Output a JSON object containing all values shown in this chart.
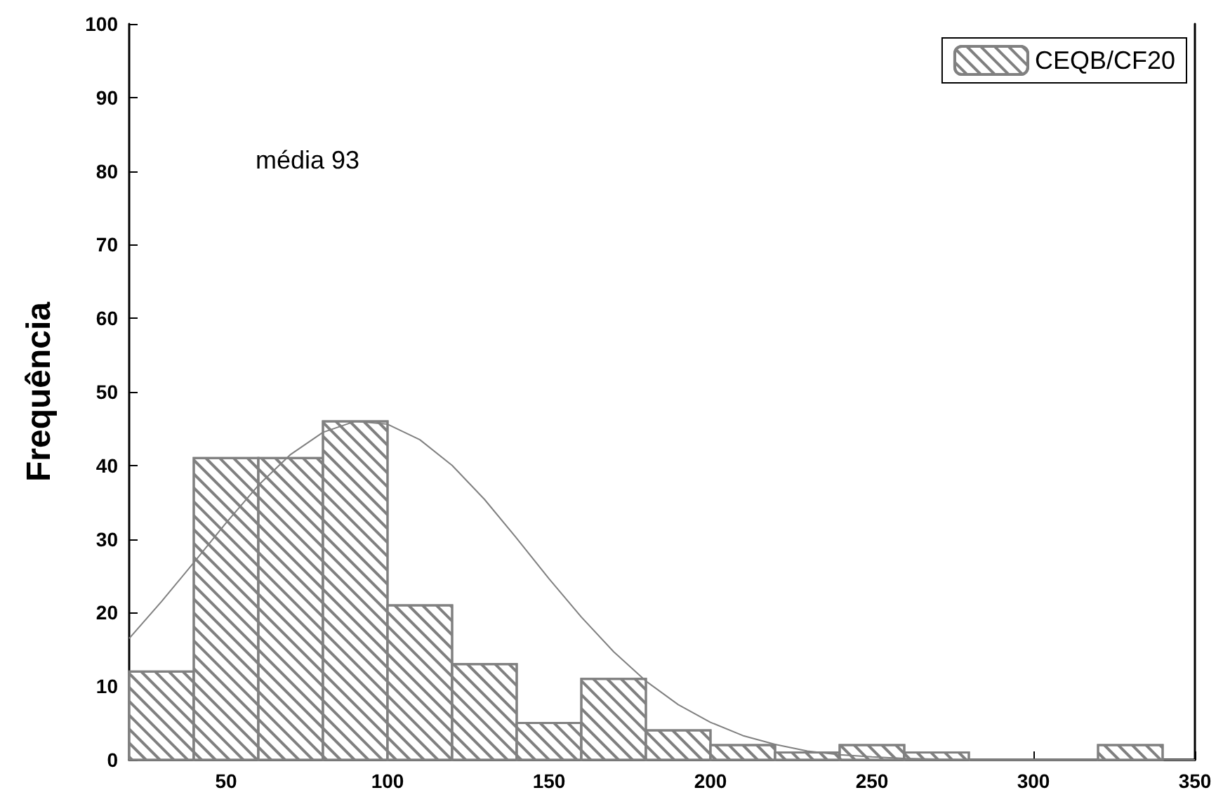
{
  "chart_data": {
    "type": "histogram",
    "ylabel": "Frequência",
    "annotations": [
      "média 93"
    ],
    "series": [
      {
        "name": "CEQB/CF20",
        "color": "#808080",
        "bins": [
          20,
          40,
          60,
          80,
          100,
          120,
          140,
          160,
          180,
          200,
          220,
          240,
          260,
          280,
          300,
          320,
          340
        ],
        "values": [
          12,
          41,
          41,
          46,
          21,
          13,
          5,
          11,
          4,
          2,
          1,
          2,
          1,
          0,
          0,
          2
        ]
      },
      {
        "type": "line",
        "color": "#808080",
        "marker": "none",
        "x": [
          20,
          30,
          40,
          50,
          60,
          70,
          80,
          90,
          100,
          110,
          120,
          130,
          140,
          150,
          160,
          170,
          180,
          190,
          200,
          210,
          220,
          230,
          240,
          250,
          260,
          270,
          280,
          290,
          300,
          310,
          320,
          330,
          340,
          350
        ],
        "values": [
          16.5,
          21.5,
          26.8,
          32.2,
          37.3,
          41.5,
          44.5,
          46,
          45.6,
          43.5,
          40,
          35.4,
          30.1,
          24.6,
          19.4,
          14.7,
          10.7,
          7.5,
          5.1,
          3.3,
          2.1,
          1.2,
          0.7,
          0.4,
          0.2,
          0.1,
          0,
          0,
          0,
          0,
          0,
          0,
          0,
          0
        ]
      }
    ],
    "xlim": [
      20,
      350
    ],
    "xticks": [
      50,
      100,
      150,
      200,
      250,
      300,
      350
    ],
    "ylim": [
      0,
      100
    ],
    "yticks": [
      0,
      10,
      20,
      30,
      40,
      50,
      60,
      70,
      80,
      90,
      100
    ],
    "grid": false,
    "legend": "top right"
  }
}
